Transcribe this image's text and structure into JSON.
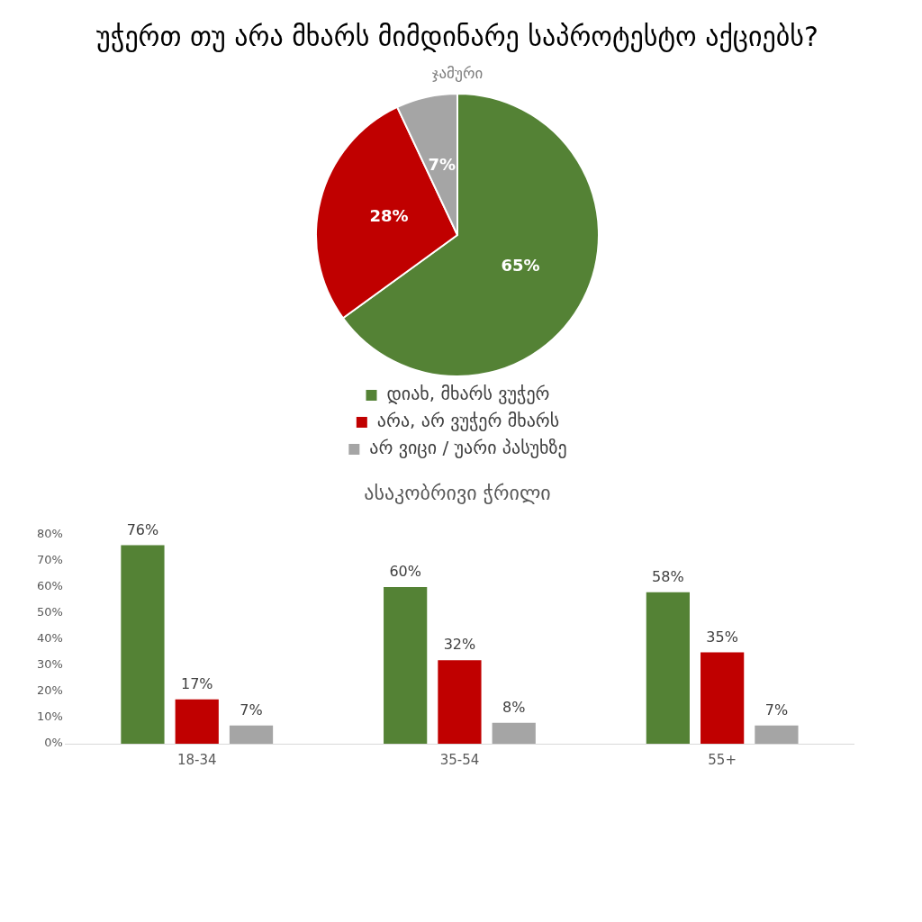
{
  "chart_data": [
    {
      "type": "pie",
      "title": "უჭერთ თუ არა მხარს მიმდინარე საპროტესტო აქციებს?",
      "subtitle": "ჯამური",
      "categories": [
        "დიახ, მხარს ვუჭერ",
        "არა, არ ვუჭერ მხარს",
        "არ ვიცი / უარი პასუხზე"
      ],
      "values": [
        65,
        28,
        7
      ],
      "colors": [
        "#548235",
        "#c00000",
        "#a5a5a5"
      ],
      "value_labels": [
        "65%",
        "28%",
        "7%"
      ],
      "legend": "bottom"
    },
    {
      "type": "bar",
      "title": "ასაკობრივი ჭრილი",
      "categories": [
        "18-34",
        "35-54",
        "55+"
      ],
      "series": [
        {
          "color": "#548235",
          "values": [
            76,
            60,
            58
          ],
          "value_labels": [
            "76%",
            "60%",
            "58%"
          ]
        },
        {
          "color": "#c00000",
          "values": [
            17,
            32,
            35
          ],
          "value_labels": [
            "17%",
            "32%",
            "35%"
          ]
        },
        {
          "color": "#a5a5a5",
          "values": [
            7,
            8,
            7
          ],
          "value_labels": [
            "7%",
            "8%",
            "7%"
          ]
        }
      ],
      "ylim": [
        0,
        80
      ],
      "yticks": [
        {
          "value": 0,
          "label": "0%"
        },
        {
          "value": 10,
          "label": "10%"
        },
        {
          "value": 20,
          "label": "20%"
        },
        {
          "value": 30,
          "label": "30%"
        },
        {
          "value": 40,
          "label": "40%"
        },
        {
          "value": 50,
          "label": "50%"
        },
        {
          "value": 60,
          "label": "60%"
        },
        {
          "value": 70,
          "label": "70%"
        },
        {
          "value": 80,
          "label": "80%"
        }
      ],
      "grid": false,
      "legend": false
    }
  ]
}
